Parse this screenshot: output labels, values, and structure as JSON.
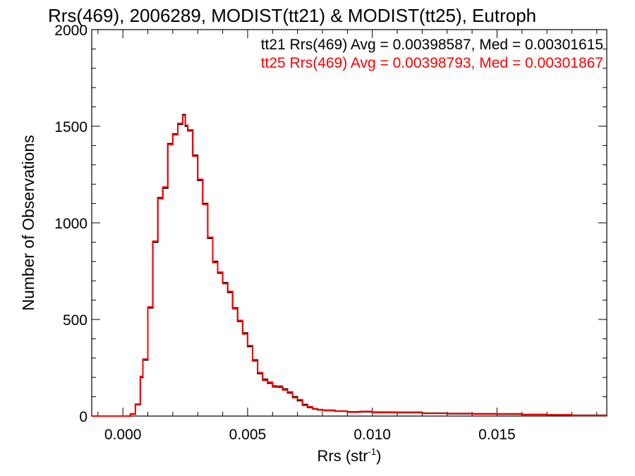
{
  "chart_data": {
    "type": "line",
    "title": "Rrs(469), 2006289, MODIST(tt21) & MODIST(tt25), Eutroph",
    "xlabel": "Rrs (str",
    "xlabel_sup": "-1",
    "xlabel_close": ")",
    "ylabel": "Number of Observations",
    "xlim": [
      -0.00125,
      0.0194
    ],
    "ylim": [
      0,
      2000
    ],
    "xticks": [
      0.0,
      0.005,
      0.01,
      0.015
    ],
    "xtick_labels": [
      "0.000",
      "0.005",
      "0.010",
      "0.015"
    ],
    "yticks": [
      0,
      500,
      1000,
      1500,
      2000
    ],
    "ytick_labels": [
      "0",
      "500",
      "1000",
      "1500",
      "2000"
    ],
    "grid": false,
    "legend_position": "top-right",
    "annotations": [
      {
        "text": "tt21 Rrs(469) Avg = 0.00398587, Med = 0.00301615",
        "color": "#000000"
      },
      {
        "text": "tt25 Rrs(469) Avg = 0.00398793, Med = 0.00301867",
        "color": "#ff0000"
      }
    ],
    "series": [
      {
        "color": "#000000",
        "x": [
          -0.00125,
          0.0001,
          0.0003,
          0.0005,
          0.0007,
          0.0008,
          0.001,
          0.0012,
          0.0014,
          0.0016,
          0.0018,
          0.002,
          0.0022,
          0.0024,
          0.0025,
          0.0026,
          0.0028,
          0.003,
          0.0032,
          0.0034,
          0.0036,
          0.0038,
          0.004,
          0.0042,
          0.0044,
          0.0046,
          0.0048,
          0.005,
          0.0052,
          0.0054,
          0.0056,
          0.0058,
          0.006,
          0.0062,
          0.0064,
          0.0066,
          0.0068,
          0.007,
          0.0072,
          0.0074,
          0.0076,
          0.0078,
          0.008,
          0.0085,
          0.009,
          0.0095,
          0.01,
          0.011,
          0.012,
          0.013,
          0.014,
          0.015,
          0.016,
          0.017,
          0.018,
          0.0194
        ],
        "y": [
          0,
          0,
          10,
          60,
          200,
          290,
          560,
          900,
          1130,
          1180,
          1410,
          1460,
          1510,
          1560,
          1500,
          1480,
          1350,
          1220,
          1100,
          920,
          800,
          740,
          690,
          640,
          560,
          490,
          430,
          360,
          290,
          220,
          190,
          170,
          155,
          150,
          140,
          120,
          100,
          80,
          60,
          45,
          38,
          32,
          30,
          25,
          22,
          22,
          20,
          18,
          15,
          12,
          12,
          10,
          8,
          6,
          4,
          2
        ]
      },
      {
        "color": "#ff0000",
        "x": [
          -0.00125,
          0.0001,
          0.0003,
          0.0005,
          0.0007,
          0.0008,
          0.001,
          0.0012,
          0.0014,
          0.0016,
          0.0018,
          0.002,
          0.0022,
          0.0024,
          0.0025,
          0.0026,
          0.0028,
          0.003,
          0.0032,
          0.0034,
          0.0036,
          0.0038,
          0.004,
          0.0042,
          0.0044,
          0.0046,
          0.0048,
          0.005,
          0.0052,
          0.0054,
          0.0056,
          0.0058,
          0.006,
          0.0062,
          0.0064,
          0.0066,
          0.0068,
          0.007,
          0.0072,
          0.0074,
          0.0076,
          0.0078,
          0.008,
          0.0085,
          0.009,
          0.0095,
          0.01,
          0.011,
          0.012,
          0.013,
          0.014,
          0.015,
          0.016,
          0.017,
          0.018,
          0.0194
        ],
        "y": [
          0,
          0,
          12,
          62,
          205,
          295,
          565,
          905,
          1125,
          1185,
          1405,
          1455,
          1515,
          1555,
          1505,
          1475,
          1345,
          1225,
          1095,
          925,
          795,
          745,
          685,
          645,
          555,
          495,
          425,
          365,
          285,
          225,
          185,
          175,
          150,
          155,
          135,
          125,
          95,
          85,
          55,
          48,
          36,
          34,
          28,
          26,
          20,
          24,
          18,
          20,
          14,
          14,
          10,
          12,
          7,
          7,
          3,
          2
        ]
      }
    ]
  }
}
